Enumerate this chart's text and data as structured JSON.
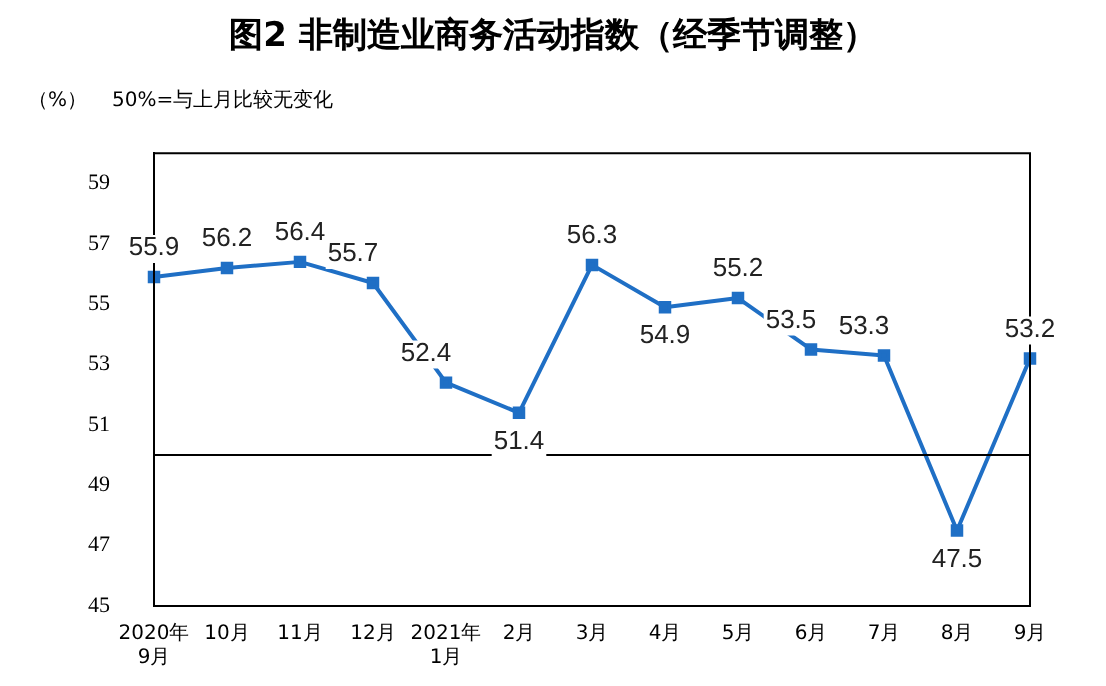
{
  "chart_data": {
    "type": "line",
    "title": "图2 非制造业商务活动指数（经季节调整）",
    "ylabel": "（%）",
    "annotations": [
      "50%=与上月比较无变化"
    ],
    "categories": [
      "2020年\n9月",
      "10月",
      "11月",
      "12月",
      "2021年\n1月",
      "2月",
      "3月",
      "4月",
      "5月",
      "6月",
      "7月",
      "8月",
      "9月"
    ],
    "series": [
      {
        "color": "#1f6fc5",
        "values": [
          55.9,
          56.2,
          56.4,
          55.7,
          52.4,
          51.4,
          56.3,
          54.9,
          55.2,
          53.5,
          53.3,
          47.5,
          53.2
        ]
      }
    ],
    "ylim": [
      45,
      60
    ],
    "yticks": [
      45,
      47,
      49,
      51,
      53,
      55,
      57,
      59
    ],
    "grid": false,
    "legend": false,
    "marker": "square",
    "line_style": "solid",
    "data_labels": true,
    "ref_lines": [
      {
        "axis": "y",
        "value": 50,
        "color": "#000000"
      }
    ]
  }
}
